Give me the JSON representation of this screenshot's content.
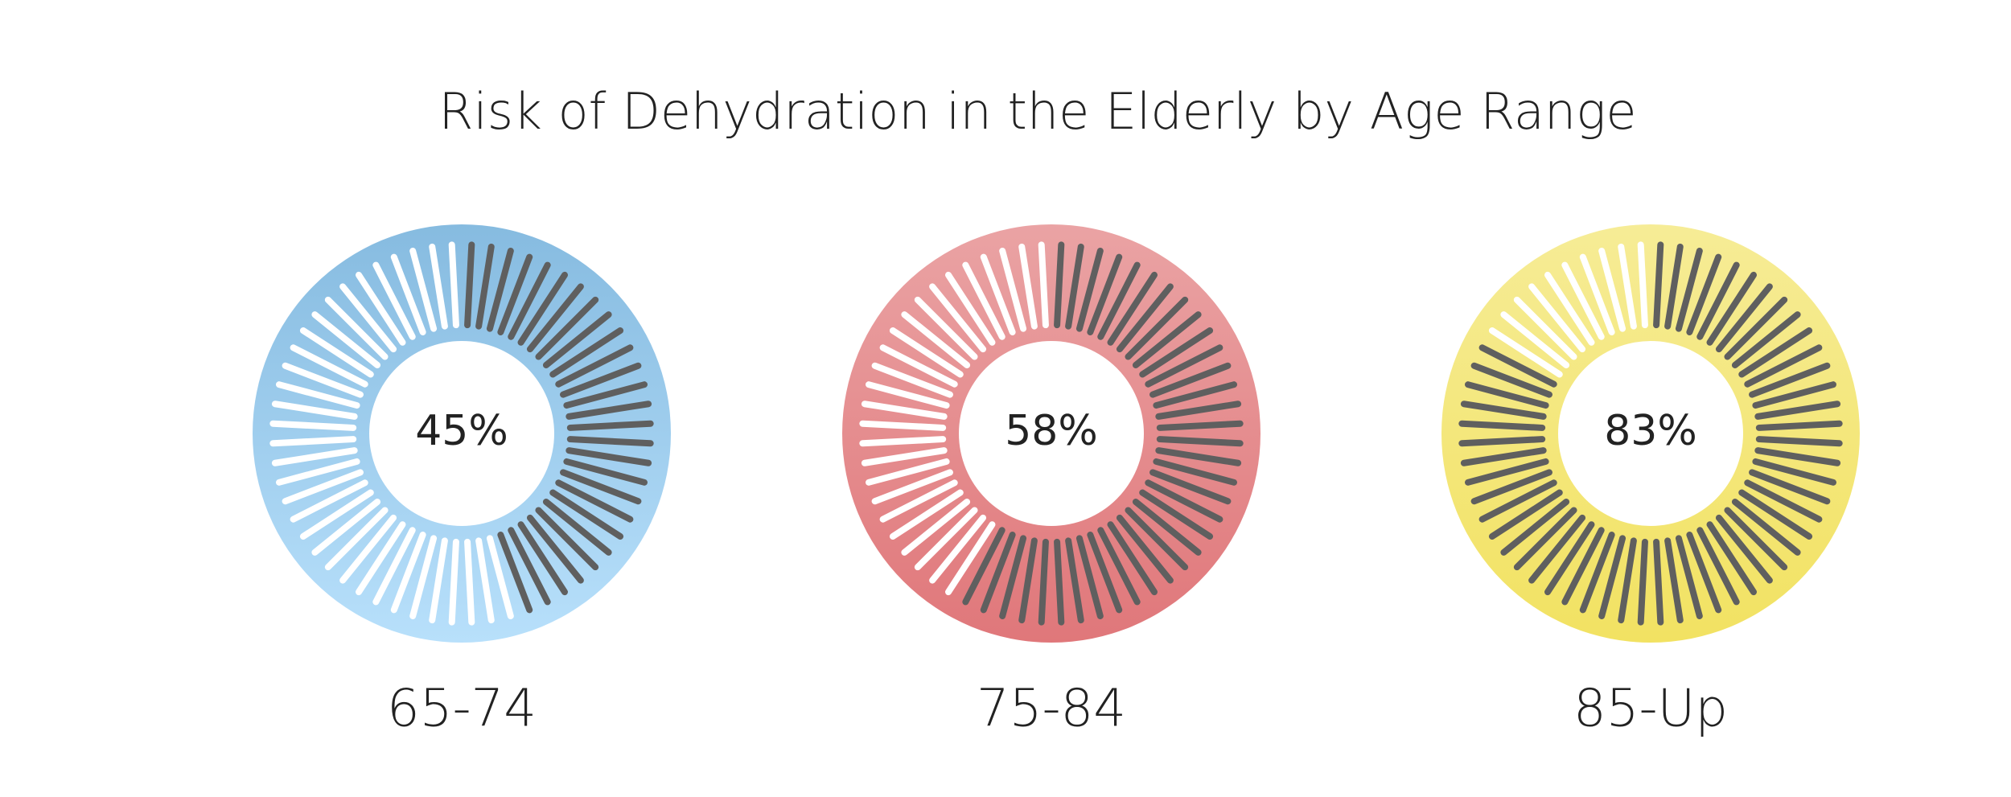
{
  "chart_data": {
    "type": "gauge",
    "title": "Risk of Dehydration in the Elderly by Age Range",
    "categories": [
      "65-74",
      "75-84",
      "85-Up"
    ],
    "values": [
      45,
      58,
      83
    ],
    "value_labels": [
      "45%",
      "58%",
      "83%"
    ],
    "ylim": [
      0,
      100
    ],
    "colors": [
      [
        "#86bbe0",
        "#b8e0fb"
      ],
      [
        "#eaa3a4",
        "#e0777a"
      ],
      [
        "#f6ec96",
        "#f2e262"
      ]
    ],
    "fill_color": "#5f5f5f"
  }
}
